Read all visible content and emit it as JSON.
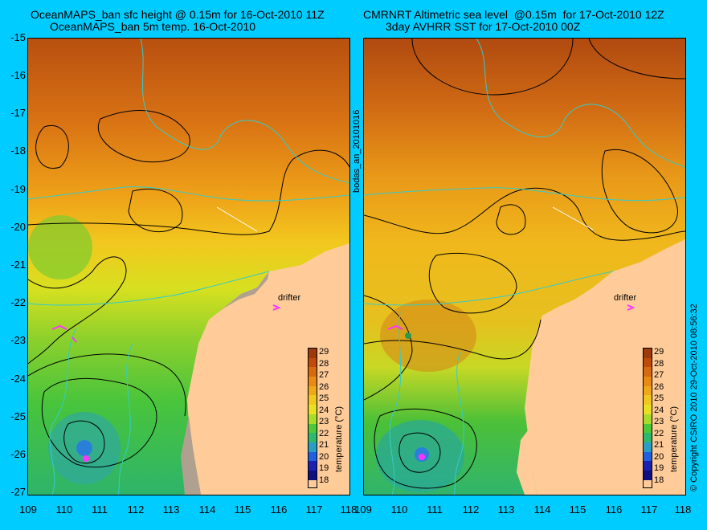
{
  "left_panel": {
    "title_line1": "OceanMAPS_ban sfc height @ 0.15m for 16-Oct-2010 11Z",
    "title_line2": "OceanMAPS_ban 5m temp. 16-Oct-2010",
    "drifter_label": "drifter"
  },
  "right_panel": {
    "title_line1": "CMRNRT Altimetric sea level  @0.15m  for 17-Oct-2010 12Z",
    "title_line2": "3day AVHRR SST for 17-Oct-2010 00Z",
    "drifter_label": "drifter"
  },
  "middle_label": "bodas_an_20101016",
  "copyright": "© Copyright CSIRO 2010   29-Oct-2010 08:56:32",
  "axes": {
    "y_ticks": [
      "-15",
      "-16",
      "-17",
      "-18",
      "-19",
      "-20",
      "-21",
      "-22",
      "-23",
      "-24",
      "-25",
      "-26",
      "-27"
    ],
    "x_ticks": [
      "109",
      "110",
      "111",
      "112",
      "113",
      "114",
      "115",
      "116",
      "117",
      "118"
    ]
  },
  "colorbar": {
    "label": "temperature (°C)",
    "ticks": [
      "29",
      "28",
      "27",
      "26",
      "25",
      "24",
      "23",
      "22",
      "21",
      "20",
      "19",
      "18"
    ],
    "colors": [
      "#9c3a0c",
      "#c04a0a",
      "#d66a10",
      "#e88a14",
      "#f0a818",
      "#f2c81e",
      "#e8e020",
      "#a8dc2a",
      "#4cc838",
      "#2cb86e",
      "#2a9cc8",
      "#2060e0",
      "#1a20b0",
      "#101080"
    ]
  },
  "map": {
    "lon_range": [
      109,
      118
    ],
    "lat_range": [
      -27,
      -15
    ],
    "land_color": "#ffcc99",
    "contour_color": "#000000",
    "isobath_color": "#33cccc"
  }
}
